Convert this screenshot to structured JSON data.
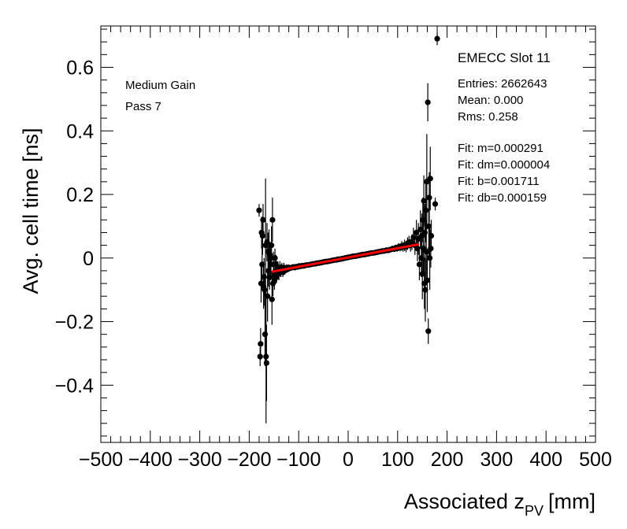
{
  "chart_data": {
    "type": "scatter",
    "title": "EMECC Slot 11",
    "xlabel_main": "Associated z",
    "xlabel_sub": "PV",
    "xlabel_unit": "[mm]",
    "ylabel": "Avg. cell time [ns]",
    "xlim": [
      -500,
      500
    ],
    "ylim": [
      -0.58,
      0.73
    ],
    "x_ticks": [
      -500,
      -400,
      -300,
      -200,
      -100,
      0,
      100,
      200,
      300,
      400,
      500
    ],
    "x_tick_labels": [
      "−500",
      "−400",
      "−300",
      "−200",
      "−100",
      "0",
      "100",
      "200",
      "300",
      "400",
      "500"
    ],
    "y_ticks": [
      -0.4,
      -0.2,
      0,
      0.2,
      0.4,
      0.6
    ],
    "y_tick_labels": [
      "−0.4",
      "−0.2",
      "0",
      "0.2",
      "0.4",
      "0.6"
    ],
    "annotations": [
      "Medium Gain",
      "Pass 7"
    ],
    "stats": [
      "Entries: 2662643",
      "Mean: 0.000",
      "Rms: 0.258"
    ],
    "fit_text": [
      "Fit: m=0.000291",
      "Fit: dm=0.000004",
      "Fit: b=0.001711",
      "Fit: db=0.000159"
    ],
    "fit": {
      "m": 0.000291,
      "b": 0.001711,
      "x_range": [
        -155,
        143
      ],
      "color": "#ff0000"
    },
    "series": [
      {
        "name": "data",
        "color": "#000000",
        "points": [
          [
            -180,
            0.15,
            0.02
          ],
          [
            -178,
            -0.31,
            0.03
          ],
          [
            -177,
            -0.27,
            0.05
          ],
          [
            -176,
            -0.08,
            0.06
          ],
          [
            -175,
            0.08,
            0.05
          ],
          [
            -174,
            -0.02,
            0.08
          ],
          [
            -173,
            0.07,
            0.06
          ],
          [
            -172,
            0.12,
            0.05
          ],
          [
            -171,
            -0.09,
            0.07
          ],
          [
            -170,
            -0.06,
            0.06
          ],
          [
            -169,
            -0.1,
            0.05
          ],
          [
            -168,
            -0.24,
            0.1
          ],
          [
            -167,
            0.04,
            0.21
          ],
          [
            -166,
            -0.31,
            0.21
          ],
          [
            -165,
            -0.33,
            0.12
          ],
          [
            -164,
            0.05,
            0.06
          ],
          [
            -163,
            -0.12,
            0.08
          ],
          [
            -162,
            0.02,
            0.06
          ],
          [
            -161,
            -0.04,
            0.05
          ],
          [
            -160,
            0.02,
            0.07
          ],
          [
            -159,
            -0.06,
            0.04
          ],
          [
            -158,
            0.01,
            0.04
          ],
          [
            -157,
            -0.02,
            0.05
          ],
          [
            -156,
            0.0,
            0.05
          ],
          [
            -155,
            0.04,
            0.06
          ],
          [
            -154,
            -0.13,
            0.08
          ],
          [
            -153,
            0.12,
            0.07
          ],
          [
            -152,
            -0.08,
            0.04
          ],
          [
            -151,
            -0.02,
            0.04
          ],
          [
            -150,
            -0.05,
            0.03
          ],
          [
            -149,
            -0.07,
            0.03
          ],
          [
            -148,
            0.0,
            0.03
          ],
          [
            -147,
            -0.04,
            0.03
          ],
          [
            -146,
            -0.02,
            0.03
          ],
          [
            -145,
            -0.06,
            0.02
          ],
          [
            -144,
            -0.04,
            0.03
          ],
          [
            -142,
            -0.03,
            0.02
          ],
          [
            -140,
            -0.05,
            0.02
          ],
          [
            -138,
            -0.03,
            0.02
          ],
          [
            -136,
            -0.04,
            0.02
          ],
          [
            -134,
            -0.03,
            0.015
          ],
          [
            -132,
            -0.045,
            0.015
          ],
          [
            -130,
            -0.03,
            0.015
          ],
          [
            -128,
            -0.04,
            0.012
          ],
          [
            -126,
            -0.035,
            0.012
          ],
          [
            -124,
            -0.03,
            0.01
          ],
          [
            -122,
            -0.035,
            0.01
          ],
          [
            -120,
            -0.03,
            0.01
          ],
          [
            -117,
            -0.032,
            0.008
          ],
          [
            -114,
            -0.03,
            0.008
          ],
          [
            -111,
            -0.028,
            0.008
          ],
          [
            -108,
            -0.03,
            0.007
          ],
          [
            -105,
            -0.027,
            0.007
          ],
          [
            -102,
            -0.028,
            0.006
          ],
          [
            -99,
            -0.025,
            0.006
          ],
          [
            -96,
            -0.026,
            0.006
          ],
          [
            -93,
            -0.024,
            0.005
          ],
          [
            -90,
            -0.025,
            0.005
          ],
          [
            -87,
            -0.023,
            0.005
          ],
          [
            -84,
            -0.022,
            0.005
          ],
          [
            -81,
            -0.022,
            0.005
          ],
          [
            -78,
            -0.021,
            0.005
          ],
          [
            -75,
            -0.02,
            0.005
          ],
          [
            -72,
            -0.019,
            0.005
          ],
          [
            -69,
            -0.018,
            0.005
          ],
          [
            -66,
            -0.018,
            0.005
          ],
          [
            -63,
            -0.016,
            0.005
          ],
          [
            -60,
            -0.016,
            0.005
          ],
          [
            -57,
            -0.015,
            0.005
          ],
          [
            -54,
            -0.014,
            0.005
          ],
          [
            -51,
            -0.013,
            0.005
          ],
          [
            -48,
            -0.012,
            0.005
          ],
          [
            -45,
            -0.011,
            0.005
          ],
          [
            -42,
            -0.011,
            0.005
          ],
          [
            -39,
            -0.01,
            0.005
          ],
          [
            -36,
            -0.009,
            0.005
          ],
          [
            -33,
            -0.008,
            0.005
          ],
          [
            -30,
            -0.007,
            0.005
          ],
          [
            -27,
            -0.006,
            0.005
          ],
          [
            -24,
            -0.006,
            0.005
          ],
          [
            -21,
            -0.004,
            0.005
          ],
          [
            -18,
            -0.004,
            0.005
          ],
          [
            -15,
            -0.003,
            0.005
          ],
          [
            -12,
            -0.002,
            0.005
          ],
          [
            -9,
            -0.001,
            0.005
          ],
          [
            -6,
            0.0,
            0.005
          ],
          [
            -3,
            0.001,
            0.005
          ],
          [
            0,
            0.002,
            0.005
          ],
          [
            3,
            0.003,
            0.005
          ],
          [
            6,
            0.004,
            0.005
          ],
          [
            9,
            0.005,
            0.005
          ],
          [
            12,
            0.006,
            0.005
          ],
          [
            15,
            0.006,
            0.005
          ],
          [
            18,
            0.007,
            0.005
          ],
          [
            21,
            0.008,
            0.005
          ],
          [
            24,
            0.009,
            0.005
          ],
          [
            27,
            0.01,
            0.005
          ],
          [
            30,
            0.011,
            0.005
          ],
          [
            33,
            0.011,
            0.005
          ],
          [
            36,
            0.012,
            0.005
          ],
          [
            39,
            0.013,
            0.005
          ],
          [
            42,
            0.014,
            0.005
          ],
          [
            45,
            0.015,
            0.005
          ],
          [
            48,
            0.016,
            0.005
          ],
          [
            51,
            0.016,
            0.005
          ],
          [
            54,
            0.017,
            0.005
          ],
          [
            57,
            0.018,
            0.005
          ],
          [
            60,
            0.019,
            0.005
          ],
          [
            63,
            0.02,
            0.006
          ],
          [
            66,
            0.021,
            0.006
          ],
          [
            69,
            0.022,
            0.006
          ],
          [
            72,
            0.022,
            0.006
          ],
          [
            75,
            0.023,
            0.006
          ],
          [
            78,
            0.025,
            0.007
          ],
          [
            81,
            0.024,
            0.007
          ],
          [
            84,
            0.026,
            0.007
          ],
          [
            87,
            0.027,
            0.008
          ],
          [
            90,
            0.03,
            0.008
          ],
          [
            93,
            0.028,
            0.009
          ],
          [
            96,
            0.032,
            0.01
          ],
          [
            99,
            0.03,
            0.01
          ],
          [
            102,
            0.035,
            0.012
          ],
          [
            105,
            0.033,
            0.012
          ],
          [
            108,
            0.038,
            0.015
          ],
          [
            111,
            0.035,
            0.015
          ],
          [
            114,
            0.04,
            0.018
          ],
          [
            117,
            0.036,
            0.018
          ],
          [
            120,
            0.045,
            0.02
          ],
          [
            123,
            0.05,
            0.02
          ],
          [
            126,
            0.04,
            0.02
          ],
          [
            129,
            0.05,
            0.025
          ],
          [
            132,
            0.065,
            0.03
          ],
          [
            135,
            0.04,
            0.03
          ],
          [
            138,
            0.08,
            0.04
          ],
          [
            140,
            0.03,
            0.04
          ],
          [
            142,
            0.06,
            0.05
          ],
          [
            144,
            -0.02,
            0.05
          ],
          [
            146,
            0.09,
            0.06
          ],
          [
            148,
            0.0,
            0.06
          ],
          [
            149,
            0.07,
            0.07
          ],
          [
            150,
            -0.05,
            0.08
          ],
          [
            151,
            0.12,
            0.07
          ],
          [
            152,
            0.03,
            0.08
          ],
          [
            153,
            0.18,
            0.08
          ],
          [
            154,
            -0.08,
            0.08
          ],
          [
            155,
            0.08,
            0.09
          ],
          [
            156,
            -0.1,
            0.1
          ],
          [
            157,
            0.15,
            0.1
          ],
          [
            158,
            0.02,
            0.1
          ],
          [
            159,
            0.24,
            0.15
          ],
          [
            160,
            -0.07,
            0.1
          ],
          [
            161,
            0.49,
            0.06
          ],
          [
            162,
            -0.23,
            0.04
          ],
          [
            163,
            0.1,
            0.1
          ],
          [
            164,
            0.19,
            0.08
          ],
          [
            165,
            0.0,
            0.1
          ],
          [
            166,
            0.25,
            0.1
          ],
          [
            167,
            0.03,
            0.06
          ],
          [
            168,
            0.07,
            0.05
          ],
          [
            176,
            0.17,
            0.02
          ],
          [
            180,
            0.69,
            0.02
          ]
        ]
      }
    ]
  }
}
